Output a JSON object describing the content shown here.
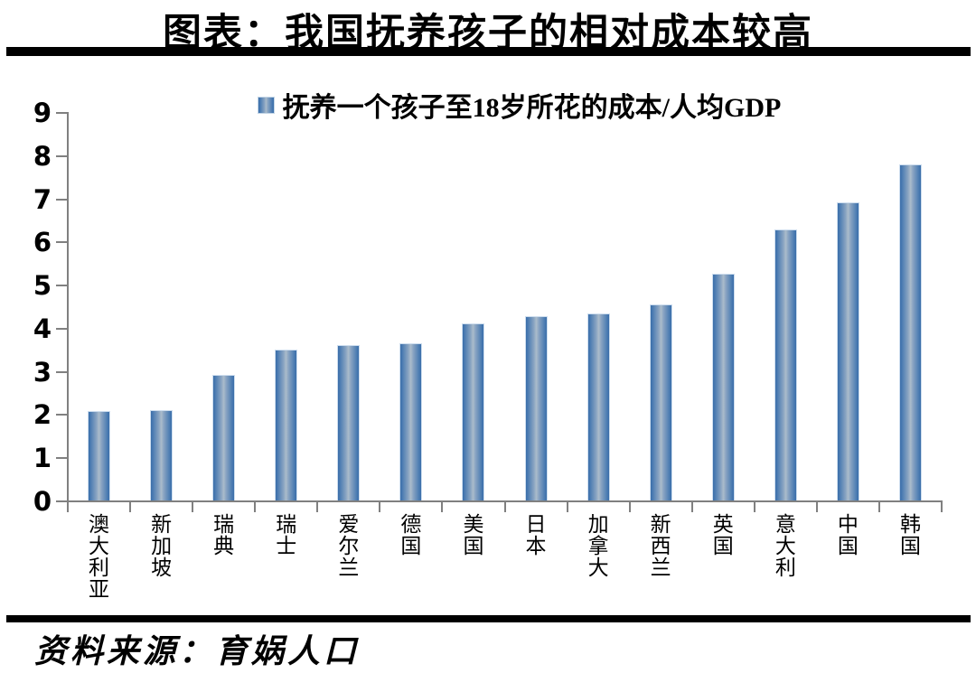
{
  "header": {
    "title": "图表：我国抚养孩子的相对成本较高"
  },
  "legend": {
    "label": "抚养一个孩子至18岁所花的成本/人均GDP",
    "swatch_color": "#4f81bd"
  },
  "footer": {
    "source": "资料来源：育娲人口"
  },
  "chart_data": {
    "type": "bar",
    "title": "抚养一个孩子至18岁所花的成本/人均GDP",
    "categories": [
      "澳大利亚",
      "新加坡",
      "瑞典",
      "瑞士",
      "爱尔兰",
      "德国",
      "美国",
      "日本",
      "加拿大",
      "新西兰",
      "英国",
      "意大利",
      "中国",
      "韩国"
    ],
    "values": [
      2.08,
      2.1,
      2.91,
      3.5,
      3.6,
      3.64,
      4.11,
      4.26,
      4.34,
      4.55,
      5.25,
      6.28,
      6.9,
      7.79
    ],
    "xlabel": "",
    "ylabel": "",
    "ylim": [
      0,
      9
    ],
    "ytick_step": 1,
    "grid": false,
    "legend_position": "top",
    "colors": {
      "bar_edge": "#3a6ea9",
      "bar_center": "#abbccb",
      "axis": "#808080",
      "text": "#000000",
      "divider": "#000000"
    }
  }
}
